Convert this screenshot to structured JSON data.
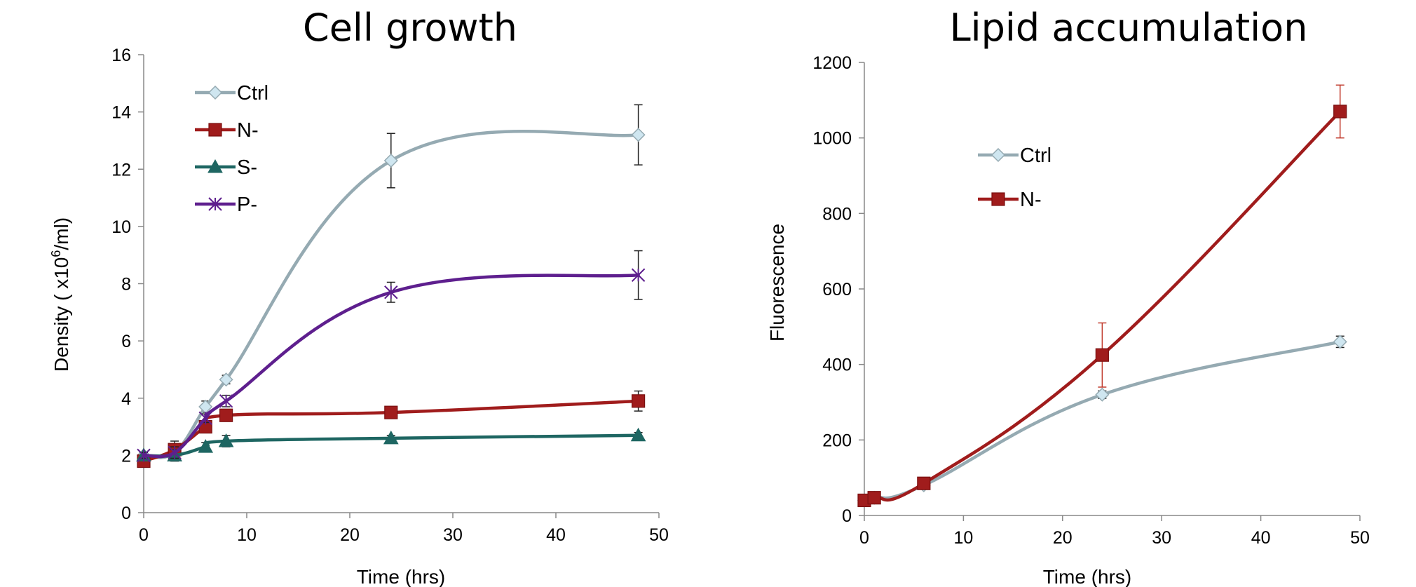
{
  "chart_data": [
    {
      "type": "line",
      "title": "Cell growth",
      "xlabel": "Time (hrs)",
      "ylabel": "Density ( x10⁶/ml)",
      "xlim": [
        0,
        50
      ],
      "ylim": [
        0,
        16
      ],
      "xticks": [
        "0",
        "10",
        "20",
        "30",
        "40",
        "50"
      ],
      "yticks": [
        "0",
        "2",
        "4",
        "6",
        "8",
        "10",
        "12",
        "14",
        "16"
      ],
      "legend_position": "top-left",
      "grid": false,
      "series": [
        {
          "name": "Ctrl",
          "color": "#95aab2",
          "marker": "diamond",
          "x": [
            0,
            3,
            6,
            8,
            24,
            48
          ],
          "y": [
            2.0,
            2.1,
            3.7,
            4.65,
            12.3,
            13.2
          ],
          "err": [
            0.1,
            0.25,
            0.2,
            0.15,
            0.95,
            1.05
          ]
        },
        {
          "name": "N-",
          "color": "#a01c1c",
          "marker": "square",
          "x": [
            0,
            3,
            6,
            8,
            24,
            48
          ],
          "y": [
            1.8,
            2.2,
            3.0,
            3.4,
            3.5,
            3.9
          ],
          "err": [
            0.1,
            0.3,
            0.15,
            0.15,
            0.15,
            0.35
          ]
        },
        {
          "name": "S-",
          "color": "#1e6662",
          "marker": "triangle",
          "x": [
            0,
            3,
            6,
            8,
            24,
            48
          ],
          "y": [
            2.0,
            2.0,
            2.3,
            2.5,
            2.6,
            2.7
          ],
          "err": [
            0.1,
            0.2,
            0.15,
            0.2,
            0.1,
            0.1
          ]
        },
        {
          "name": "P-",
          "color": "#5e1f8e",
          "marker": "x",
          "x": [
            0,
            3,
            6,
            8,
            24,
            48
          ],
          "y": [
            2.0,
            2.1,
            3.3,
            3.9,
            7.7,
            8.3
          ],
          "err": [
            0.1,
            0.2,
            0.15,
            0.2,
            0.35,
            0.85
          ]
        }
      ]
    },
    {
      "type": "line",
      "title": "Lipid accumulation",
      "xlabel": "Time (hrs)",
      "ylabel": "Fluorescence",
      "xlim": [
        0,
        50
      ],
      "ylim": [
        0,
        1200
      ],
      "xticks": [
        "0",
        "10",
        "20",
        "30",
        "40",
        "50"
      ],
      "yticks": [
        "0",
        "200",
        "400",
        "600",
        "800",
        "1000",
        "1200"
      ],
      "legend_position": "top-left",
      "grid": false,
      "series": [
        {
          "name": "Ctrl",
          "color": "#95aab2",
          "marker": "diamond",
          "x": [
            0,
            1,
            6,
            24,
            48
          ],
          "y": [
            40,
            47,
            80,
            320,
            460
          ],
          "err": [
            5,
            5,
            5,
            10,
            15
          ]
        },
        {
          "name": "N-",
          "color": "#a01c1c",
          "marker": "square",
          "x": [
            0,
            1,
            6,
            24,
            48
          ],
          "y": [
            40,
            47,
            85,
            425,
            1070
          ],
          "err": [
            5,
            5,
            10,
            85,
            70
          ]
        }
      ]
    }
  ]
}
